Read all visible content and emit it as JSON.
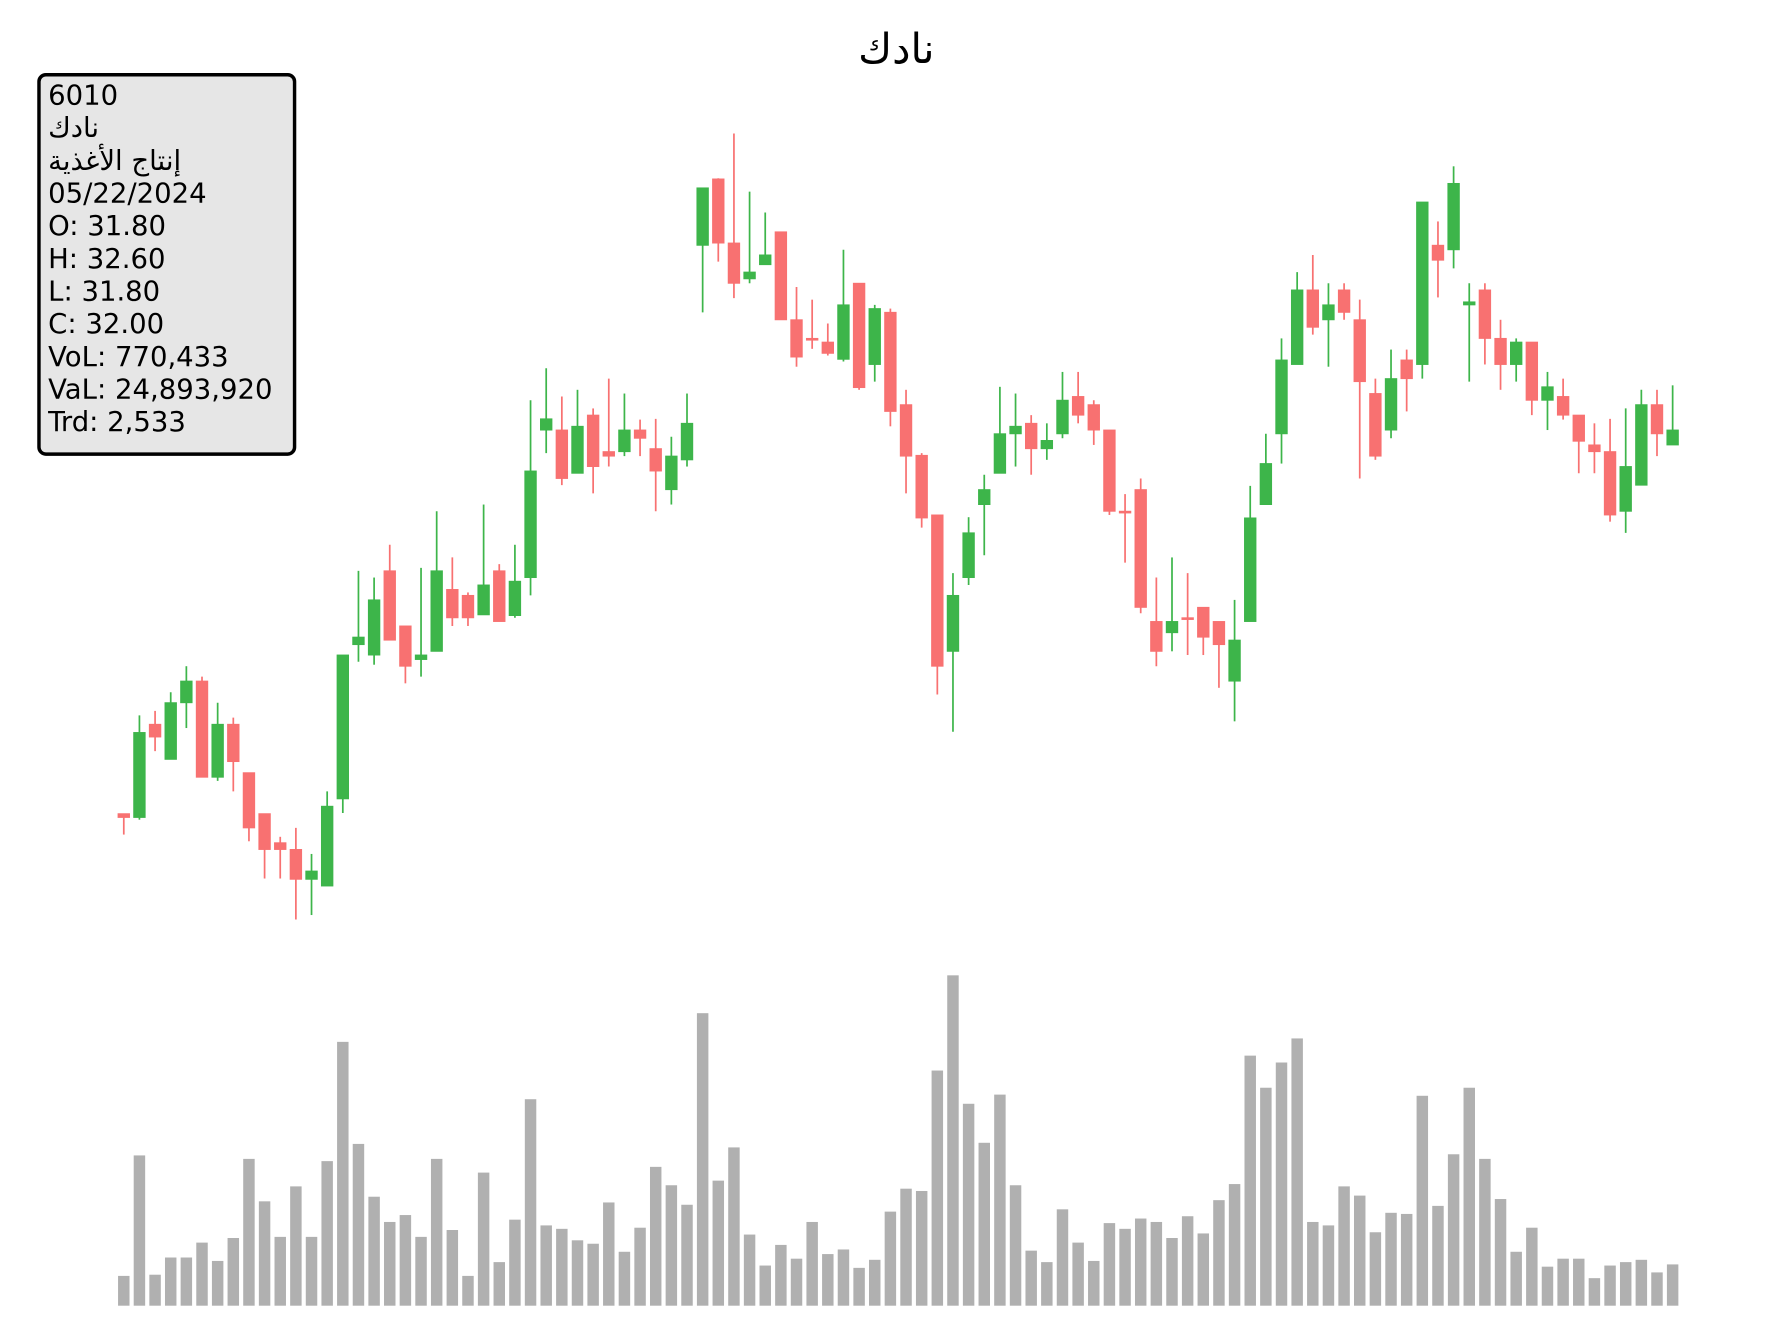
{
  "chart_data": {
    "type": "candlestick",
    "title": "نادك",
    "info": {
      "symbol": "6010",
      "name": "نادك",
      "sector": "إنتاج الأغذية",
      "date": "05/22/2024",
      "lines": [
        "O: 31.80",
        "H: 32.60",
        "L: 31.80",
        "C: 32.00",
        "VoL: 770,433",
        "VaL: 24,893,920",
        "Trd: 2,533"
      ]
    },
    "up_color": "#3db54a",
    "down_color": "#f87171",
    "volume_color": "#b0b0b0",
    "ylim": [
      25.3,
      36.2
    ],
    "volume_ylim": [
      0,
      6500000
    ],
    "open": [
      26.85,
      26.8,
      28.05,
      27.58,
      28.34,
      28.63,
      27.34,
      28.05,
      27.4,
      26.85,
      26.46,
      26.37,
      25.97,
      25.88,
      27.05,
      29.12,
      28.98,
      30.11,
      29.37,
      28.92,
      29.03,
      29.86,
      29.78,
      29.52,
      30.11,
      29.51,
      30.02,
      32.0,
      32.0,
      31.42,
      32.2,
      31.71,
      31.71,
      32.0,
      31.75,
      31.2,
      31.6,
      34.48,
      35.37,
      34.51,
      34.03,
      34.22,
      34.66,
      33.48,
      33.23,
      33.18,
      32.95,
      33.97,
      32.88,
      33.58,
      32.34,
      31.66,
      30.86,
      29.03,
      30.02,
      31.0,
      31.42,
      31.95,
      32.09,
      31.75,
      31.95,
      32.45,
      32.34,
      32.0,
      30.91,
      31.2,
      29.43,
      29.28,
      29.48,
      29.62,
      29.43,
      28.63,
      29.43,
      31.0,
      31.95,
      32.88,
      33.88,
      33.48,
      33.88,
      33.48,
      32.49,
      32.0,
      32.94,
      32.88,
      34.48,
      34.42,
      33.68,
      33.88,
      33.23,
      32.88,
      33.18,
      32.4,
      32.45,
      32.2,
      31.8,
      31.71,
      30.91,
      31.26,
      32.34,
      31.8
    ],
    "high": [
      26.85,
      28.17,
      28.23,
      28.48,
      28.83,
      28.69,
      28.34,
      28.14,
      27.4,
      26.85,
      26.54,
      26.66,
      26.31,
      27.15,
      28.98,
      30.11,
      30.02,
      30.46,
      29.37,
      30.15,
      30.91,
      30.29,
      29.82,
      31.0,
      30.2,
      30.46,
      32.4,
      32.83,
      32.45,
      32.54,
      32.29,
      32.69,
      32.49,
      32.14,
      32.15,
      31.91,
      32.49,
      35.25,
      35.38,
      35.98,
      35.2,
      34.92,
      34.66,
      33.92,
      33.75,
      33.43,
      34.42,
      33.97,
      33.68,
      33.63,
      32.54,
      31.69,
      30.86,
      30.08,
      30.83,
      31.4,
      32.58,
      32.49,
      32.2,
      32.09,
      32.78,
      32.78,
      32.4,
      32.0,
      31.14,
      31.35,
      30.02,
      30.29,
      30.08,
      29.62,
      29.43,
      29.72,
      31.25,
      31.95,
      33.23,
      34.12,
      34.35,
      33.97,
      33.97,
      33.75,
      32.69,
      33.08,
      33.08,
      35.06,
      34.8,
      35.54,
      33.97,
      33.97,
      33.48,
      33.23,
      33.18,
      32.78,
      32.69,
      32.2,
      32.09,
      32.15,
      32.29,
      32.54,
      32.54,
      32.6
    ],
    "low": [
      26.57,
      26.77,
      27.69,
      27.58,
      28.0,
      27.34,
      27.29,
      27.15,
      26.48,
      25.98,
      25.98,
      25.43,
      25.49,
      25.88,
      26.86,
      28.89,
      28.85,
      29.18,
      28.6,
      28.69,
      29.03,
      29.37,
      29.37,
      29.52,
      29.43,
      29.48,
      29.78,
      31.69,
      31.26,
      31.42,
      31.15,
      31.51,
      31.65,
      31.65,
      30.91,
      31.0,
      31.51,
      33.58,
      34.26,
      33.77,
      33.97,
      34.22,
      33.48,
      32.85,
      33.09,
      33.0,
      32.92,
      32.54,
      32.65,
      32.05,
      31.15,
      30.69,
      28.45,
      27.95,
      29.92,
      30.32,
      31.42,
      31.51,
      31.4,
      31.6,
      31.89,
      32.09,
      31.8,
      30.86,
      30.22,
      29.54,
      28.83,
      29.03,
      28.98,
      28.98,
      28.54,
      28.09,
      29.43,
      31.0,
      31.55,
      32.88,
      33.28,
      32.85,
      33.48,
      31.35,
      31.6,
      31.89,
      32.25,
      32.69,
      33.78,
      34.17,
      32.65,
      32.88,
      32.54,
      32.65,
      32.2,
      32.0,
      32.14,
      31.42,
      31.42,
      30.77,
      30.62,
      31.26,
      31.65,
      31.8
    ],
    "close": [
      26.8,
      27.94,
      27.88,
      28.34,
      28.63,
      27.34,
      28.05,
      27.55,
      26.66,
      26.37,
      26.37,
      25.97,
      26.08,
      26.95,
      28.98,
      29.22,
      29.72,
      29.18,
      28.83,
      28.98,
      30.11,
      29.48,
      29.48,
      29.92,
      29.43,
      29.97,
      31.45,
      32.15,
      31.35,
      32.05,
      31.51,
      31.65,
      32.0,
      31.89,
      31.45,
      31.65,
      32.09,
      35.25,
      34.51,
      33.97,
      34.12,
      34.35,
      33.48,
      32.98,
      33.22,
      33.03,
      33.68,
      32.57,
      33.63,
      32.25,
      31.65,
      30.82,
      28.83,
      29.78,
      30.62,
      31.2,
      31.95,
      32.05,
      31.75,
      31.86,
      32.4,
      32.2,
      32.0,
      30.91,
      30.89,
      29.62,
      29.03,
      29.43,
      29.46,
      29.22,
      29.12,
      29.18,
      30.82,
      31.55,
      32.94,
      33.88,
      33.38,
      33.68,
      33.58,
      32.65,
      31.65,
      32.69,
      32.69,
      35.06,
      34.28,
      35.31,
      33.72,
      33.23,
      32.88,
      33.18,
      32.4,
      32.58,
      32.2,
      31.85,
      31.71,
      30.86,
      31.51,
      32.34,
      31.95,
      32.0
    ],
    "volume": [
      556000,
      2803500,
      578000,
      899000,
      899000,
      1177000,
      835000,
      1263000,
      2739000,
      1947000,
      1284000,
      2226000,
      1284000,
      2697000,
      4922000,
      3018000,
      2033000,
      1562000,
      1691000,
      1284000,
      2739000,
      1412000,
      556000,
      2483000,
      813000,
      1605000,
      3852000,
      1498000,
      1434000,
      1220000,
      1156000,
      1926000,
      1006000,
      1455000,
      2590000,
      2247000,
      1883000,
      5457000,
      2333000,
      2953000,
      1327000,
      749000,
      1134000,
      877000,
      1562000,
      963000,
      1049000,
      706000,
      856000,
      1755000,
      2183000,
      2140000,
      4387000,
      6163000,
      3767000,
      3039000,
      3938000,
      2247000,
      1027000,
      813000,
      1798000,
      1177000,
      835000,
      1541000,
      1434000,
      1626000,
      1562000,
      1263000,
      1669000,
      1348000,
      1969000,
      2269000,
      4665000,
      4066000,
      4537000,
      4986000,
      1562000,
      1498000,
      2226000,
      2054000,
      1370000,
      1733000,
      1712000,
      3916000,
      1862000,
      2825000,
      4066000,
      2739000,
      1990000,
      1006000,
      1455000,
      728000,
      877000,
      877000,
      514000,
      749000,
      813000,
      856000,
      621000,
      770433
    ]
  }
}
